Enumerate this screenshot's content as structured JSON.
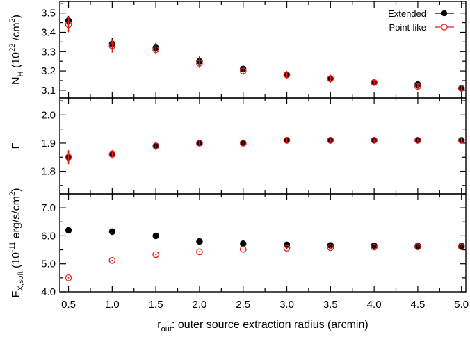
{
  "chart_data": {
    "type": "scatter",
    "layout": "three vertically stacked panels sharing the x axis",
    "x": {
      "label_main": "r",
      "label_sub": "out",
      "label_rest": ": outer source extraction radius (arcmin)",
      "range": [
        0.4,
        5.05
      ],
      "ticks": [
        0.5,
        1.0,
        1.5,
        2.0,
        2.5,
        3.0,
        3.5,
        4.0,
        4.5,
        5.0
      ],
      "tick_labels": [
        "0.5",
        "1.0",
        "1.5",
        "2.0",
        "2.5",
        "3.0",
        "3.5",
        "4.0",
        "4.5",
        "5.0"
      ]
    },
    "legend": {
      "position": "top-right",
      "entries": [
        {
          "label": "Extended",
          "marker": "filled-circle",
          "color": "#000000"
        },
        {
          "label": "Point-like",
          "marker": "open-circle",
          "color": "#e0201b"
        }
      ]
    },
    "panels": [
      {
        "id": "nh",
        "ylabel_parts": [
          "N",
          "H",
          " (10",
          "22",
          " /cm",
          "2",
          ")"
        ],
        "ylim": [
          3.06,
          3.56
        ],
        "yticks": [
          3.1,
          3.2,
          3.3,
          3.4,
          3.5
        ],
        "ytick_labels": [
          "3.1",
          "3.2",
          "3.3",
          "3.4",
          "3.5"
        ],
        "series": [
          {
            "name": "Extended",
            "color": "#000000",
            "marker": "filled",
            "y": [
              3.46,
              3.34,
              3.32,
              3.25,
              3.21,
              3.18,
              3.16,
              3.14,
              3.13,
              3.11
            ],
            "err": [
              0.025,
              0.03,
              0.025,
              0.025,
              0.018,
              0.015,
              0.018,
              0.015,
              0.015,
              0.012
            ]
          },
          {
            "name": "Point-like",
            "color": "#e0201b",
            "marker": "open",
            "y": [
              3.44,
              3.33,
              3.31,
              3.24,
              3.2,
              3.18,
              3.16,
              3.14,
              3.12,
              3.11
            ],
            "err": [
              0.04,
              0.035,
              0.025,
              0.025,
              0.02,
              0.02,
              0.02,
              0.015,
              0.015,
              0.015
            ]
          }
        ]
      },
      {
        "id": "gamma",
        "ylabel_parts": [
          "Γ"
        ],
        "ylim": [
          1.72,
          2.06
        ],
        "yticks": [
          1.8,
          1.9,
          2.0
        ],
        "ytick_labels": [
          "1.8",
          "1.9",
          "2.0"
        ],
        "series": [
          {
            "name": "Extended",
            "color": "#000000",
            "marker": "filled",
            "y": [
              1.85,
              1.86,
              1.89,
              1.9,
              1.9,
              1.91,
              1.91,
              1.91,
              1.91,
              1.91
            ],
            "err": [
              0.02,
              0.012,
              0.015,
              0.008,
              0.006,
              0.008,
              0.006,
              0.006,
              0.006,
              0.008
            ]
          },
          {
            "name": "Point-like",
            "color": "#e0201b",
            "marker": "open",
            "y": [
              1.85,
              1.86,
              1.89,
              1.9,
              1.9,
              1.91,
              1.91,
              1.91,
              1.91,
              1.91
            ],
            "err": [
              0.025,
              0.015,
              0.015,
              0.008,
              0.006,
              0.008,
              0.006,
              0.006,
              0.006,
              0.008
            ]
          }
        ]
      },
      {
        "id": "flux",
        "ylabel_parts": [
          "F",
          "X,soft",
          " (10",
          "-11",
          " erg/s/cm",
          "2",
          ")"
        ],
        "ylim": [
          4.0,
          7.5
        ],
        "yticks": [
          4.0,
          5.0,
          6.0,
          7.0
        ],
        "ytick_labels": [
          "4.0",
          "5.0",
          "6.0",
          "7.0"
        ],
        "series": [
          {
            "name": "Extended",
            "color": "#000000",
            "marker": "filled",
            "y": [
              6.2,
              6.15,
              6.0,
              5.8,
              5.72,
              5.68,
              5.66,
              5.65,
              5.64,
              5.64
            ],
            "err": [
              0,
              0,
              0,
              0,
              0,
              0,
              0,
              0,
              0,
              0
            ]
          },
          {
            "name": "Point-like",
            "color": "#e0201b",
            "marker": "open",
            "y": [
              4.5,
              5.12,
              5.33,
              5.43,
              5.52,
              5.56,
              5.58,
              5.6,
              5.61,
              5.61
            ],
            "err": [
              0,
              0,
              0,
              0,
              0,
              0,
              0,
              0,
              0,
              0
            ]
          }
        ]
      }
    ]
  }
}
